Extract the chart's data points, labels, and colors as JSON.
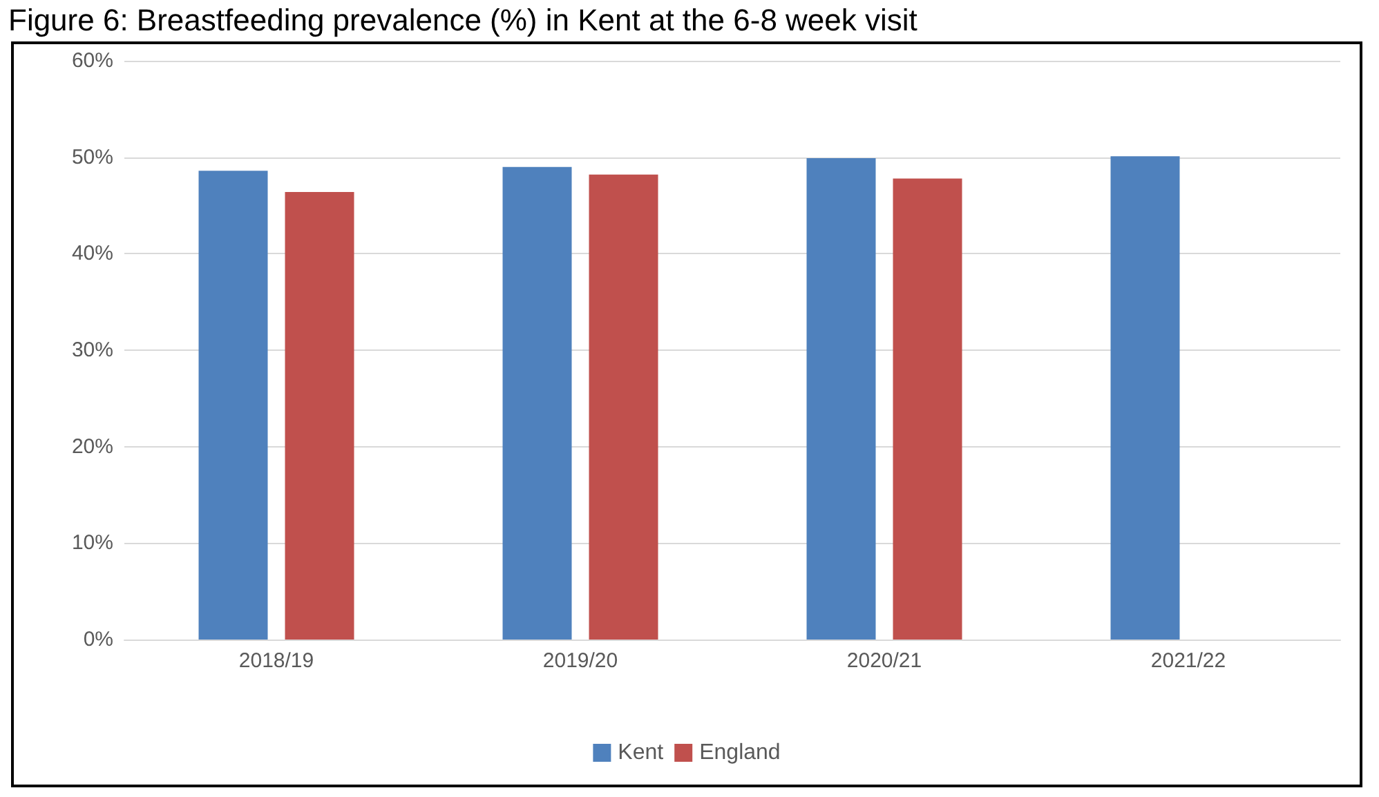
{
  "chart_data": {
    "type": "bar",
    "title": "Figure 6: Breastfeeding prevalence (%) in Kent at the 6-8 week visit",
    "categories": [
      "2018/19",
      "2019/20",
      "2020/21",
      "2021/22"
    ],
    "series": [
      {
        "name": "Kent",
        "color": "#4f81bd",
        "values": [
          48.6,
          49.0,
          49.9,
          50.1
        ]
      },
      {
        "name": "England",
        "color": "#c0504d",
        "values": [
          46.4,
          48.2,
          47.8,
          null
        ]
      }
    ],
    "ylim": [
      0,
      60
    ],
    "yticks": [
      {
        "value": 0,
        "label": "0%"
      },
      {
        "value": 10,
        "label": "10%"
      },
      {
        "value": 20,
        "label": "20%"
      },
      {
        "value": 30,
        "label": "30%"
      },
      {
        "value": 40,
        "label": "40%"
      },
      {
        "value": 50,
        "label": "50%"
      },
      {
        "value": 60,
        "label": "60%"
      }
    ],
    "grid": "y",
    "legend": "bottom"
  }
}
